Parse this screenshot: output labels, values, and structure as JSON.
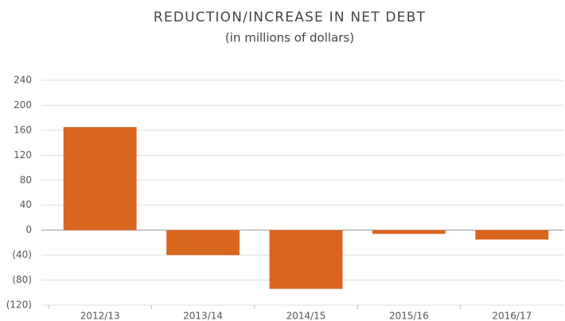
{
  "chart_data": {
    "type": "bar",
    "title": "REDUCTION/INCREASE IN NET DEBT",
    "subtitle": "(in millions of dollars)",
    "categories": [
      "2012/13",
      "2013/14",
      "2014/15",
      "2015/16",
      "2016/17"
    ],
    "values": [
      165,
      -40,
      -94,
      -6,
      -15
    ],
    "color": "#d9661f",
    "ylim": [
      -120,
      240
    ],
    "yticks": [
      {
        "value": -120,
        "label": "(120)"
      },
      {
        "value": -80,
        "label": "(80)"
      },
      {
        "value": -40,
        "label": "(40)"
      },
      0,
      40,
      80,
      120,
      160,
      200,
      240
    ],
    "grid": true
  }
}
